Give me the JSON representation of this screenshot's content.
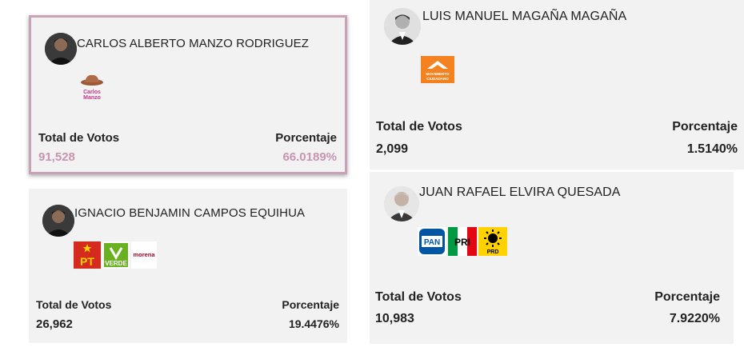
{
  "candidates": [
    {
      "name": "CARLOS ALBERTO MANZO RODRIGUEZ",
      "votes_label": "Total de Votos",
      "votes": "91,528",
      "pct_label": "Porcentaje",
      "pct": "66.0189%",
      "logo_text": [
        "Carlos",
        "Manzo"
      ],
      "selected": true
    },
    {
      "name": "LUIS MANUEL MAGAÑA MAGAÑA",
      "votes_label": "Total de Votos",
      "votes": "2,099",
      "pct_label": "Porcentaje",
      "pct": "1.5140%",
      "logo_text": [
        "MOVIMIENTO",
        "CIUDADANO"
      ]
    },
    {
      "name": "IGNACIO BENJAMIN CAMPOS EQUIHUA",
      "votes_label": "Total de Votos",
      "votes": "26,962",
      "pct_label": "Porcentaje",
      "pct": "19.4476%",
      "logo_text": [
        "PT",
        "VERDE",
        "morena"
      ]
    },
    {
      "name": "JUAN RAFAEL ELVIRA QUESADA",
      "votes_label": "Total de Votos",
      "votes": "10,983",
      "pct_label": "Porcentaje",
      "pct": "7.9220%",
      "logo_text": [
        "PAN",
        "PRI",
        "PRD"
      ]
    }
  ],
  "colors": {
    "highlight_border": "#c9a2b6",
    "highlight_value": "#c894b2",
    "card_bg": "#f2f2f2",
    "mc_orange": "#f58220",
    "pt_red": "#d52b1e",
    "verde_green": "#6ab023",
    "morena_red": "#a50021",
    "pan_blue": "#0056a3",
    "pri_green": "#009a44",
    "pri_red": "#e30613",
    "prd_yellow": "#ffd200"
  }
}
